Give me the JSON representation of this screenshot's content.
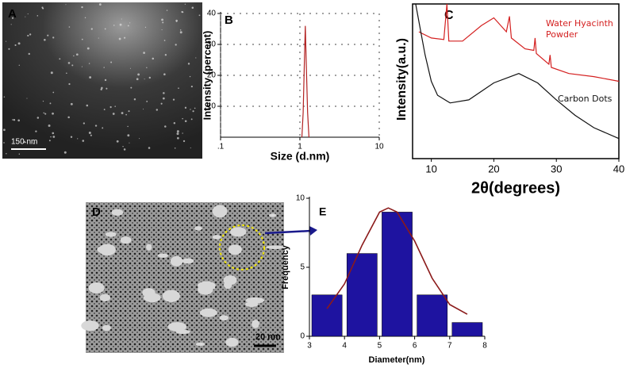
{
  "image_panels": [
    {
      "label": "A",
      "scale_bar": "150 nm"
    },
    {
      "label": "D",
      "scale_bar": "20 nm"
    }
  ],
  "chart_data": [
    {
      "type": "line",
      "label": "B",
      "x_label": "Size  (d.nm)",
      "y_label": "Intensity (percent)",
      "log_x": true,
      "grid": true,
      "color": "#b22222",
      "x": [
        1.06,
        1.1,
        1.14,
        1.17,
        1.2,
        1.25,
        1.3
      ],
      "values": [
        0,
        8,
        25,
        36,
        25,
        8,
        0
      ],
      "xlim": [
        0.1,
        10
      ],
      "xticks": [
        {
          "value": 0.1,
          "label": ".1"
        },
        1,
        10
      ],
      "ylim": [
        0,
        40
      ],
      "yticks": [
        10,
        20,
        30,
        40
      ]
    },
    {
      "type": "line",
      "label": "C",
      "x_label": "2θ(degrees)",
      "y_label": "Intensity(a.u.)",
      "grid": false,
      "xlim": [
        7,
        40
      ],
      "xticks": [
        10,
        20,
        30,
        40
      ],
      "ylim": [
        0,
        100
      ],
      "series": [
        {
          "name": "Water Hyacinth Powder",
          "color": "#d42020",
          "x": [
            8,
            10,
            12,
            12.5,
            12.8,
            15,
            18,
            20,
            22,
            22.5,
            22.8,
            25,
            26.4,
            26.6,
            26.8,
            28.8,
            29,
            29.2,
            32,
            36,
            40
          ],
          "values": [
            82,
            78,
            77,
            100,
            76,
            76,
            86,
            91,
            82,
            92,
            78,
            71,
            70,
            78,
            68,
            61,
            67,
            59,
            55,
            53,
            50
          ]
        },
        {
          "name": "Carbon Dots",
          "color": "#111111",
          "x": [
            7.5,
            8.5,
            9,
            10,
            11,
            13,
            16,
            20,
            24,
            27,
            30,
            33,
            36,
            40
          ],
          "values": [
            100,
            78,
            67,
            50,
            41,
            36,
            38,
            49,
            55,
            49,
            38,
            28,
            20,
            13
          ]
        }
      ]
    },
    {
      "type": "histogram",
      "label": "E",
      "x_label": "Diameter(nm)",
      "y_label": "Frequency",
      "color": "#1e13a0",
      "bins": [
        3,
        4,
        5,
        6,
        7,
        8
      ],
      "values": [
        3,
        6,
        9,
        3,
        1
      ],
      "xlim": [
        3,
        8
      ],
      "xticks": [
        3,
        4,
        5,
        6,
        7,
        8
      ],
      "ylim": [
        0,
        10
      ],
      "yticks": [
        0,
        5,
        10
      ],
      "fit": {
        "color": "#8b1a1a",
        "x": [
          3.5,
          4,
          4.5,
          5,
          5.25,
          5.5,
          6,
          6.5,
          7,
          7.5
        ],
        "values": [
          2,
          3.8,
          6.6,
          9,
          9.3,
          9,
          6.9,
          4.2,
          2.3,
          1.6
        ]
      }
    }
  ]
}
